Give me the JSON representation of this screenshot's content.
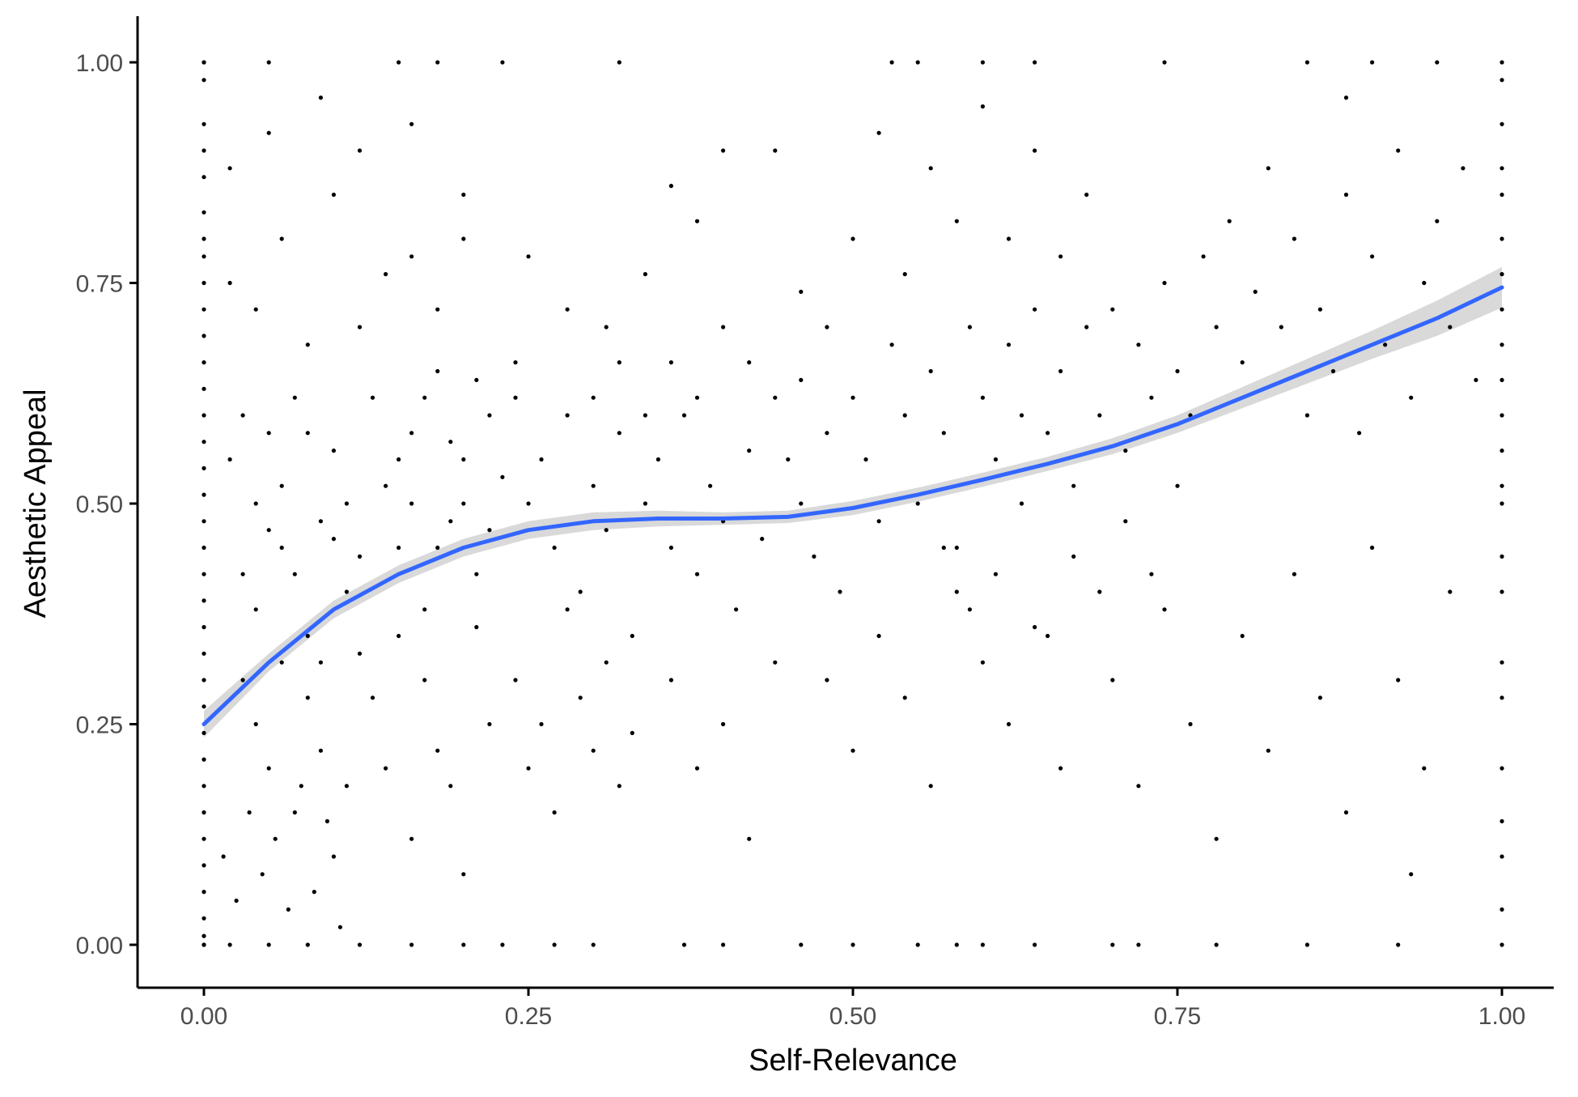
{
  "chart_data": {
    "type": "scatter",
    "title": "",
    "xlabel": "Self-Relevance",
    "ylabel": "Aesthetic Appeal",
    "xlim": [
      0,
      1
    ],
    "ylim": [
      0,
      1
    ],
    "x_ticks": [
      "0.00",
      "0.25",
      "0.50",
      "0.75",
      "1.00"
    ],
    "y_ticks": [
      "0.00",
      "0.25",
      "0.50",
      "0.75",
      "1.00"
    ],
    "grid": false,
    "legend": "none",
    "colors": {
      "points": "#000000",
      "smooth_line": "#3366FF",
      "ribbon": "#C0C0C0",
      "axis": "#000000",
      "tick_text": "#4D4D4D"
    },
    "smooth": {
      "x": [
        0.0,
        0.05,
        0.1,
        0.15,
        0.2,
        0.25,
        0.3,
        0.35,
        0.4,
        0.45,
        0.5,
        0.55,
        0.6,
        0.65,
        0.7,
        0.75,
        0.8,
        0.85,
        0.9,
        0.95,
        1.0
      ],
      "y": [
        0.25,
        0.32,
        0.38,
        0.42,
        0.45,
        0.47,
        0.48,
        0.483,
        0.483,
        0.485,
        0.495,
        0.51,
        0.527,
        0.545,
        0.565,
        0.59,
        0.62,
        0.65,
        0.68,
        0.71,
        0.745
      ],
      "lower": [
        0.235,
        0.31,
        0.37,
        0.41,
        0.44,
        0.46,
        0.47,
        0.474,
        0.476,
        0.478,
        0.487,
        0.502,
        0.519,
        0.537,
        0.556,
        0.58,
        0.608,
        0.636,
        0.664,
        0.69,
        0.722
      ],
      "upper": [
        0.265,
        0.33,
        0.39,
        0.43,
        0.46,
        0.48,
        0.49,
        0.492,
        0.49,
        0.492,
        0.503,
        0.518,
        0.535,
        0.553,
        0.574,
        0.6,
        0.632,
        0.664,
        0.696,
        0.73,
        0.768
      ]
    },
    "points": [
      [
        0.0,
        1.0
      ],
      [
        0.0,
        0.98
      ],
      [
        0.0,
        0.93
      ],
      [
        0.0,
        0.9
      ],
      [
        0.0,
        0.87
      ],
      [
        0.0,
        0.83
      ],
      [
        0.0,
        0.8
      ],
      [
        0.0,
        0.78
      ],
      [
        0.0,
        0.75
      ],
      [
        0.0,
        0.72
      ],
      [
        0.0,
        0.69
      ],
      [
        0.0,
        0.66
      ],
      [
        0.0,
        0.63
      ],
      [
        0.0,
        0.6
      ],
      [
        0.0,
        0.57
      ],
      [
        0.0,
        0.54
      ],
      [
        0.0,
        0.51
      ],
      [
        0.0,
        0.48
      ],
      [
        0.0,
        0.45
      ],
      [
        0.0,
        0.42
      ],
      [
        0.0,
        0.39
      ],
      [
        0.0,
        0.36
      ],
      [
        0.0,
        0.33
      ],
      [
        0.0,
        0.3
      ],
      [
        0.0,
        0.27
      ],
      [
        0.0,
        0.24
      ],
      [
        0.0,
        0.21
      ],
      [
        0.0,
        0.18
      ],
      [
        0.0,
        0.15
      ],
      [
        0.0,
        0.12
      ],
      [
        0.0,
        0.09
      ],
      [
        0.0,
        0.06
      ],
      [
        0.0,
        0.03
      ],
      [
        0.0,
        0.01
      ],
      [
        0.0,
        0.0
      ],
      [
        0.0,
        0.0
      ],
      [
        0.02,
        0.0
      ],
      [
        0.05,
        0.0
      ],
      [
        0.08,
        0.0
      ],
      [
        0.12,
        0.0
      ],
      [
        0.16,
        0.0
      ],
      [
        0.2,
        0.0
      ],
      [
        0.23,
        0.0
      ],
      [
        0.27,
        0.0
      ],
      [
        0.3,
        0.0
      ],
      [
        0.37,
        0.0
      ],
      [
        0.4,
        0.0
      ],
      [
        0.46,
        0.0
      ],
      [
        0.5,
        0.0
      ],
      [
        0.55,
        0.0
      ],
      [
        0.58,
        0.0
      ],
      [
        0.6,
        0.0
      ],
      [
        0.64,
        0.0
      ],
      [
        0.7,
        0.0
      ],
      [
        0.72,
        0.0
      ],
      [
        0.78,
        0.0
      ],
      [
        0.85,
        0.0
      ],
      [
        0.92,
        0.0
      ],
      [
        1.0,
        0.0
      ],
      [
        0.0,
        1.0
      ],
      [
        0.05,
        1.0
      ],
      [
        0.15,
        1.0
      ],
      [
        0.18,
        1.0
      ],
      [
        0.23,
        1.0
      ],
      [
        0.32,
        1.0
      ],
      [
        0.53,
        1.0
      ],
      [
        0.55,
        1.0
      ],
      [
        0.6,
        1.0
      ],
      [
        0.64,
        1.0
      ],
      [
        0.74,
        1.0
      ],
      [
        0.85,
        1.0
      ],
      [
        0.9,
        1.0
      ],
      [
        0.95,
        1.0
      ],
      [
        1.0,
        1.0
      ],
      [
        1.0,
        0.98
      ],
      [
        1.0,
        0.93
      ],
      [
        1.0,
        0.88
      ],
      [
        1.0,
        0.85
      ],
      [
        1.0,
        0.8
      ],
      [
        1.0,
        0.76
      ],
      [
        1.0,
        0.72
      ],
      [
        1.0,
        0.68
      ],
      [
        1.0,
        0.64
      ],
      [
        1.0,
        0.6
      ],
      [
        1.0,
        0.56
      ],
      [
        1.0,
        0.52
      ],
      [
        1.0,
        0.5
      ],
      [
        1.0,
        0.44
      ],
      [
        1.0,
        0.4
      ],
      [
        1.0,
        0.32
      ],
      [
        1.0,
        0.28
      ],
      [
        1.0,
        0.2
      ],
      [
        1.0,
        0.14
      ],
      [
        1.0,
        0.1
      ],
      [
        1.0,
        0.04
      ],
      [
        0.02,
        0.55
      ],
      [
        0.03,
        0.6
      ],
      [
        0.04,
        0.5
      ],
      [
        0.05,
        0.58
      ],
      [
        0.06,
        0.45
      ],
      [
        0.07,
        0.62
      ],
      [
        0.08,
        0.35
      ],
      [
        0.09,
        0.48
      ],
      [
        0.1,
        0.56
      ],
      [
        0.11,
        0.4
      ],
      [
        0.03,
        0.3
      ],
      [
        0.04,
        0.25
      ],
      [
        0.05,
        0.2
      ],
      [
        0.06,
        0.32
      ],
      [
        0.07,
        0.15
      ],
      [
        0.08,
        0.28
      ],
      [
        0.09,
        0.22
      ],
      [
        0.1,
        0.1
      ],
      [
        0.11,
        0.18
      ],
      [
        0.12,
        0.33
      ],
      [
        0.13,
        0.62
      ],
      [
        0.14,
        0.52
      ],
      [
        0.15,
        0.45
      ],
      [
        0.16,
        0.58
      ],
      [
        0.17,
        0.38
      ],
      [
        0.18,
        0.65
      ],
      [
        0.19,
        0.48
      ],
      [
        0.2,
        0.55
      ],
      [
        0.21,
        0.42
      ],
      [
        0.22,
        0.6
      ],
      [
        0.13,
        0.28
      ],
      [
        0.14,
        0.2
      ],
      [
        0.15,
        0.35
      ],
      [
        0.16,
        0.12
      ],
      [
        0.17,
        0.3
      ],
      [
        0.18,
        0.22
      ],
      [
        0.19,
        0.18
      ],
      [
        0.2,
        0.08
      ],
      [
        0.21,
        0.36
      ],
      [
        0.22,
        0.25
      ],
      [
        0.02,
        0.75
      ],
      [
        0.04,
        0.72
      ],
      [
        0.06,
        0.8
      ],
      [
        0.08,
        0.68
      ],
      [
        0.1,
        0.85
      ],
      [
        0.12,
        0.7
      ],
      [
        0.14,
        0.76
      ],
      [
        0.16,
        0.78
      ],
      [
        0.18,
        0.72
      ],
      [
        0.2,
        0.8
      ],
      [
        0.02,
        0.88
      ],
      [
        0.05,
        0.92
      ],
      [
        0.09,
        0.96
      ],
      [
        0.12,
        0.9
      ],
      [
        0.16,
        0.93
      ],
      [
        0.2,
        0.85
      ],
      [
        0.25,
        0.78
      ],
      [
        0.28,
        0.72
      ],
      [
        0.31,
        0.7
      ],
      [
        0.34,
        0.76
      ],
      [
        0.24,
        0.62
      ],
      [
        0.25,
        0.5
      ],
      [
        0.26,
        0.55
      ],
      [
        0.27,
        0.45
      ],
      [
        0.28,
        0.6
      ],
      [
        0.29,
        0.4
      ],
      [
        0.3,
        0.52
      ],
      [
        0.31,
        0.47
      ],
      [
        0.32,
        0.58
      ],
      [
        0.33,
        0.35
      ],
      [
        0.24,
        0.3
      ],
      [
        0.25,
        0.2
      ],
      [
        0.26,
        0.25
      ],
      [
        0.27,
        0.15
      ],
      [
        0.28,
        0.38
      ],
      [
        0.29,
        0.28
      ],
      [
        0.3,
        0.22
      ],
      [
        0.31,
        0.32
      ],
      [
        0.32,
        0.18
      ],
      [
        0.33,
        0.24
      ],
      [
        0.34,
        0.5
      ],
      [
        0.35,
        0.55
      ],
      [
        0.36,
        0.45
      ],
      [
        0.37,
        0.6
      ],
      [
        0.38,
        0.42
      ],
      [
        0.39,
        0.52
      ],
      [
        0.4,
        0.48
      ],
      [
        0.41,
        0.38
      ],
      [
        0.42,
        0.56
      ],
      [
        0.43,
        0.46
      ],
      [
        0.36,
        0.3
      ],
      [
        0.38,
        0.2
      ],
      [
        0.4,
        0.25
      ],
      [
        0.42,
        0.12
      ],
      [
        0.44,
        0.32
      ],
      [
        0.36,
        0.86
      ],
      [
        0.38,
        0.82
      ],
      [
        0.4,
        0.9
      ],
      [
        0.44,
        0.9
      ],
      [
        0.46,
        0.74
      ],
      [
        0.45,
        0.55
      ],
      [
        0.46,
        0.5
      ],
      [
        0.47,
        0.44
      ],
      [
        0.48,
        0.58
      ],
      [
        0.49,
        0.4
      ],
      [
        0.5,
        0.62
      ],
      [
        0.51,
        0.55
      ],
      [
        0.52,
        0.48
      ],
      [
        0.53,
        0.68
      ],
      [
        0.54,
        0.6
      ],
      [
        0.55,
        0.5
      ],
      [
        0.56,
        0.65
      ],
      [
        0.57,
        0.58
      ],
      [
        0.58,
        0.45
      ],
      [
        0.59,
        0.7
      ],
      [
        0.6,
        0.62
      ],
      [
        0.61,
        0.55
      ],
      [
        0.62,
        0.68
      ],
      [
        0.63,
        0.6
      ],
      [
        0.64,
        0.72
      ],
      [
        0.48,
        0.3
      ],
      [
        0.5,
        0.22
      ],
      [
        0.52,
        0.35
      ],
      [
        0.54,
        0.28
      ],
      [
        0.56,
        0.18
      ],
      [
        0.58,
        0.4
      ],
      [
        0.6,
        0.32
      ],
      [
        0.62,
        0.25
      ],
      [
        0.64,
        0.36
      ],
      [
        0.66,
        0.2
      ],
      [
        0.5,
        0.8
      ],
      [
        0.52,
        0.92
      ],
      [
        0.54,
        0.76
      ],
      [
        0.56,
        0.88
      ],
      [
        0.58,
        0.82
      ],
      [
        0.6,
        0.95
      ],
      [
        0.62,
        0.8
      ],
      [
        0.64,
        0.9
      ],
      [
        0.66,
        0.78
      ],
      [
        0.68,
        0.85
      ],
      [
        0.65,
        0.58
      ],
      [
        0.66,
        0.65
      ],
      [
        0.67,
        0.52
      ],
      [
        0.68,
        0.7
      ],
      [
        0.69,
        0.6
      ],
      [
        0.7,
        0.72
      ],
      [
        0.71,
        0.56
      ],
      [
        0.72,
        0.68
      ],
      [
        0.73,
        0.62
      ],
      [
        0.74,
        0.75
      ],
      [
        0.75,
        0.65
      ],
      [
        0.76,
        0.6
      ],
      [
        0.77,
        0.78
      ],
      [
        0.78,
        0.7
      ],
      [
        0.79,
        0.82
      ],
      [
        0.8,
        0.66
      ],
      [
        0.81,
        0.74
      ],
      [
        0.82,
        0.88
      ],
      [
        0.83,
        0.7
      ],
      [
        0.84,
        0.8
      ],
      [
        0.7,
        0.3
      ],
      [
        0.72,
        0.18
      ],
      [
        0.74,
        0.38
      ],
      [
        0.76,
        0.25
      ],
      [
        0.78,
        0.12
      ],
      [
        0.8,
        0.35
      ],
      [
        0.82,
        0.22
      ],
      [
        0.84,
        0.42
      ],
      [
        0.86,
        0.28
      ],
      [
        0.88,
        0.15
      ],
      [
        0.85,
        0.6
      ],
      [
        0.86,
        0.72
      ],
      [
        0.87,
        0.65
      ],
      [
        0.88,
        0.85
      ],
      [
        0.89,
        0.58
      ],
      [
        0.9,
        0.78
      ],
      [
        0.91,
        0.68
      ],
      [
        0.92,
        0.9
      ],
      [
        0.93,
        0.62
      ],
      [
        0.94,
        0.75
      ],
      [
        0.95,
        0.82
      ],
      [
        0.96,
        0.7
      ],
      [
        0.97,
        0.88
      ],
      [
        0.98,
        0.64
      ],
      [
        0.9,
        0.45
      ],
      [
        0.92,
        0.3
      ],
      [
        0.94,
        0.2
      ],
      [
        0.96,
        0.4
      ],
      [
        0.93,
        0.08
      ],
      [
        0.88,
        0.96
      ],
      [
        0.03,
        0.42
      ],
      [
        0.04,
        0.38
      ],
      [
        0.05,
        0.47
      ],
      [
        0.06,
        0.52
      ],
      [
        0.07,
        0.42
      ],
      [
        0.08,
        0.58
      ],
      [
        0.09,
        0.32
      ],
      [
        0.1,
        0.46
      ],
      [
        0.11,
        0.5
      ],
      [
        0.12,
        0.44
      ],
      [
        0.015,
        0.1
      ],
      [
        0.025,
        0.05
      ],
      [
        0.035,
        0.15
      ],
      [
        0.045,
        0.08
      ],
      [
        0.055,
        0.12
      ],
      [
        0.065,
        0.04
      ],
      [
        0.075,
        0.18
      ],
      [
        0.085,
        0.06
      ],
      [
        0.095,
        0.14
      ],
      [
        0.105,
        0.02
      ],
      [
        0.15,
        0.55
      ],
      [
        0.16,
        0.5
      ],
      [
        0.17,
        0.62
      ],
      [
        0.18,
        0.45
      ],
      [
        0.19,
        0.57
      ],
      [
        0.2,
        0.5
      ],
      [
        0.21,
        0.64
      ],
      [
        0.22,
        0.47
      ],
      [
        0.23,
        0.53
      ],
      [
        0.24,
        0.66
      ],
      [
        0.57,
        0.45
      ],
      [
        0.59,
        0.38
      ],
      [
        0.61,
        0.42
      ],
      [
        0.63,
        0.5
      ],
      [
        0.65,
        0.35
      ],
      [
        0.67,
        0.44
      ],
      [
        0.69,
        0.4
      ],
      [
        0.71,
        0.48
      ],
      [
        0.73,
        0.42
      ],
      [
        0.75,
        0.52
      ],
      [
        0.44,
        0.62
      ],
      [
        0.46,
        0.64
      ],
      [
        0.48,
        0.7
      ],
      [
        0.42,
        0.66
      ],
      [
        0.4,
        0.7
      ],
      [
        0.38,
        0.62
      ],
      [
        0.36,
        0.66
      ],
      [
        0.34,
        0.6
      ],
      [
        0.32,
        0.66
      ],
      [
        0.3,
        0.62
      ]
    ]
  }
}
